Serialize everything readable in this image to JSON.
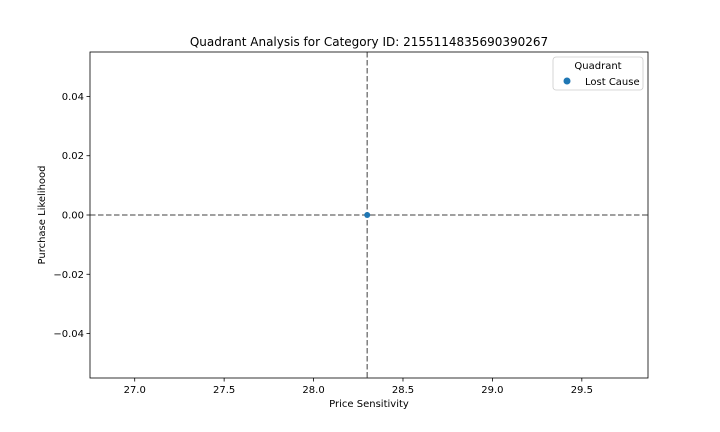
{
  "chart_data": {
    "type": "scatter",
    "title": "Quadrant Analysis for Category ID: 2155114835690390267",
    "xlabel": "Price Sensitivity",
    "ylabel": "Purchase Likelihood",
    "xlim": [
      26.75,
      29.87
    ],
    "ylim": [
      -0.055,
      0.055
    ],
    "xticks": [
      27.0,
      27.5,
      28.0,
      28.5,
      29.0,
      29.5
    ],
    "xtick_labels": [
      "27.0",
      "27.5",
      "28.0",
      "28.5",
      "29.0",
      "29.5"
    ],
    "yticks": [
      0.04,
      0.02,
      0.0,
      -0.02,
      -0.04
    ],
    "ytick_labels": [
      "0.04",
      "0.02",
      "0.00",
      "−0.02",
      "−0.04"
    ],
    "reference_lines": {
      "vertical_x": 28.3,
      "horizontal_y": 0.0,
      "style": "dashed",
      "color": "#808080"
    },
    "legend": {
      "title": "Quadrant",
      "placement": "top-right"
    },
    "series": [
      {
        "name": "Lost Cause",
        "color": "#1f77b4",
        "points": [
          {
            "x": 28.3,
            "y": 0.0
          }
        ]
      }
    ]
  }
}
